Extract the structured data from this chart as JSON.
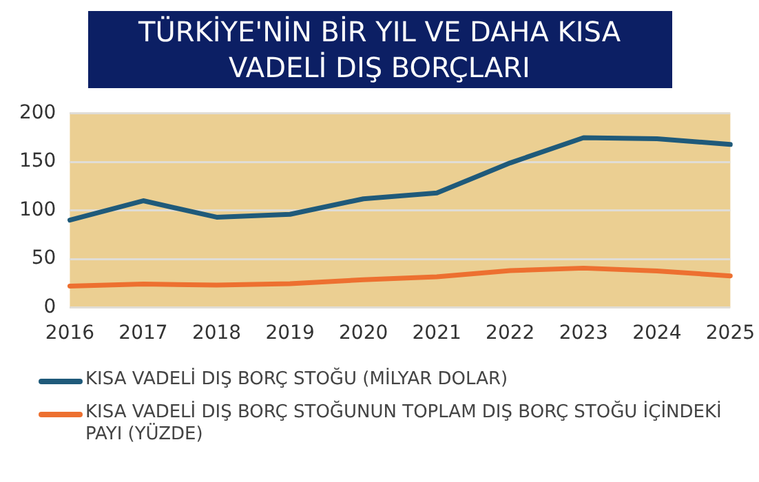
{
  "chart_data": {
    "type": "line",
    "title": "TÜRKİYE'NİN BİR YIL VE DAHA KISA VADELİ DIŞ BORÇLARI",
    "categories": [
      "2016",
      "2017",
      "2018",
      "2019",
      "2020",
      "2021",
      "2022",
      "2023",
      "2024",
      "2025"
    ],
    "series": [
      {
        "name": "KISA VADELİ DIŞ BORÇ STOĞU (MİLYAR DOLAR)",
        "color": "#1f5a7a",
        "values": [
          90,
          110,
          93,
          96,
          112,
          118,
          149,
          175,
          174,
          168
        ]
      },
      {
        "name": "KISA VADELİ DIŞ BORÇ STOĞUNUN TOPLAM DIŞ BORÇ STOĞU İÇİNDEKİ PAYI (YÜZDE)",
        "color": "#ed7030",
        "values": [
          22,
          24,
          23,
          24.5,
          28.5,
          31.5,
          38,
          40.5,
          37.5,
          32.5
        ]
      }
    ],
    "ylim": [
      0,
      200
    ],
    "yticks": [
      0,
      50,
      100,
      150,
      200
    ],
    "grid": "y",
    "legend": "bottom",
    "marker": "none",
    "line_style": "solid"
  }
}
